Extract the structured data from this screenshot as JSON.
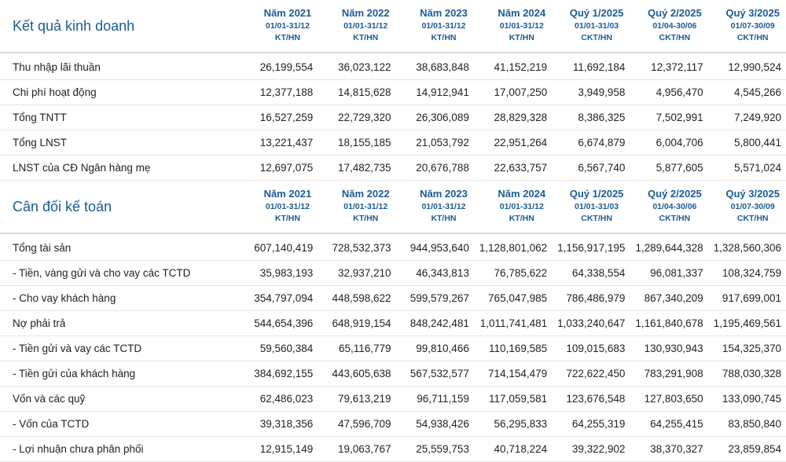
{
  "sections": [
    {
      "title": "Kết quả kinh doanh",
      "columns": [
        {
          "period": "Năm 2021",
          "dates": "01/01-31/12",
          "type": "KT/HN"
        },
        {
          "period": "Năm 2022",
          "dates": "01/01-31/12",
          "type": "KT/HN"
        },
        {
          "period": "Năm 2023",
          "dates": "01/01-31/12",
          "type": "KT/HN"
        },
        {
          "period": "Năm 2024",
          "dates": "01/01-31/12",
          "type": "KT/HN"
        },
        {
          "period": "Quý 1/2025",
          "dates": "01/01-31/03",
          "type": "CKT/HN"
        },
        {
          "period": "Quý 2/2025",
          "dates": "01/04-30/06",
          "type": "CKT/HN"
        },
        {
          "period": "Quý 3/2025",
          "dates": "01/07-30/09",
          "type": "CKT/HN"
        }
      ],
      "rows": [
        {
          "label": "Thu nhập lãi thuần",
          "values": [
            "26,199,554",
            "36,023,122",
            "38,683,848",
            "41,152,219",
            "11,692,184",
            "12,372,117",
            "12,990,524"
          ]
        },
        {
          "label": "Chi phí hoạt động",
          "values": [
            "12,377,188",
            "14,815,628",
            "14,912,941",
            "17,007,250",
            "3,949,958",
            "4,956,470",
            "4,545,266"
          ]
        },
        {
          "label": "Tổng TNTT",
          "values": [
            "16,527,259",
            "22,729,320",
            "26,306,089",
            "28,829,328",
            "8,386,325",
            "7,502,991",
            "7,249,920"
          ]
        },
        {
          "label": "Tổng LNST",
          "values": [
            "13,221,437",
            "18,155,185",
            "21,053,792",
            "22,951,264",
            "6,674,879",
            "6,004,706",
            "5,800,441"
          ]
        },
        {
          "label": "LNST của CĐ Ngân hàng mẹ",
          "values": [
            "12,697,075",
            "17,482,735",
            "20,676,788",
            "22,633,757",
            "6,567,740",
            "5,877,605",
            "5,571,024"
          ]
        }
      ]
    },
    {
      "title": "Cân đối kế toán",
      "columns": [
        {
          "period": "Năm 2021",
          "dates": "01/01-31/12",
          "type": "KT/HN"
        },
        {
          "period": "Năm 2022",
          "dates": "01/01-31/12",
          "type": "KT/HN"
        },
        {
          "period": "Năm 2023",
          "dates": "01/01-31/12",
          "type": "KT/HN"
        },
        {
          "period": "Năm 2024",
          "dates": "01/01-31/12",
          "type": "KT/HN"
        },
        {
          "period": "Quý 1/2025",
          "dates": "01/01-31/03",
          "type": "CKT/HN"
        },
        {
          "period": "Quý 2/2025",
          "dates": "01/04-30/06",
          "type": "CKT/HN"
        },
        {
          "period": "Quý 3/2025",
          "dates": "01/07-30/09",
          "type": "CKT/HN"
        }
      ],
      "rows": [
        {
          "label": "Tổng tài sản",
          "values": [
            "607,140,419",
            "728,532,373",
            "944,953,640",
            "1,128,801,062",
            "1,156,917,195",
            "1,289,644,328",
            "1,328,560,306"
          ]
        },
        {
          "label": "- Tiền, vàng gửi và cho vay các TCTD",
          "values": [
            "35,983,193",
            "32,937,210",
            "46,343,813",
            "76,785,622",
            "64,338,554",
            "96,081,337",
            "108,324,759"
          ]
        },
        {
          "label": "- Cho vay khách hàng",
          "values": [
            "354,797,094",
            "448,598,622",
            "599,579,267",
            "765,047,985",
            "786,486,979",
            "867,340,209",
            "917,699,001"
          ]
        },
        {
          "label": "Nợ phải trả",
          "values": [
            "544,654,396",
            "648,919,154",
            "848,242,481",
            "1,011,741,481",
            "1,033,240,647",
            "1,161,840,678",
            "1,195,469,561"
          ]
        },
        {
          "label": "- Tiền gửi và vay các TCTD",
          "values": [
            "59,560,384",
            "65,116,779",
            "99,810,466",
            "110,169,585",
            "109,015,683",
            "130,930,943",
            "154,325,370"
          ]
        },
        {
          "label": "- Tiền gửi của khách hàng",
          "values": [
            "384,692,155",
            "443,605,638",
            "567,532,577",
            "714,154,479",
            "722,622,450",
            "783,291,908",
            "788,030,328"
          ]
        },
        {
          "label": "Vốn và các quỹ",
          "values": [
            "62,486,023",
            "79,613,219",
            "96,711,159",
            "117,059,581",
            "123,676,548",
            "127,803,650",
            "133,090,745"
          ]
        },
        {
          "label": "- Vốn của TCTD",
          "values": [
            "39,318,356",
            "47,596,709",
            "54,938,426",
            "56,295,833",
            "64,255,319",
            "64,255,415",
            "83,850,840"
          ]
        },
        {
          "label": "- Lợi nhuận chưa phân phối",
          "values": [
            "12,915,149",
            "19,063,767",
            "25,559,753",
            "40,718,224",
            "39,322,902",
            "38,370,327",
            "23,859,854"
          ]
        }
      ]
    }
  ]
}
